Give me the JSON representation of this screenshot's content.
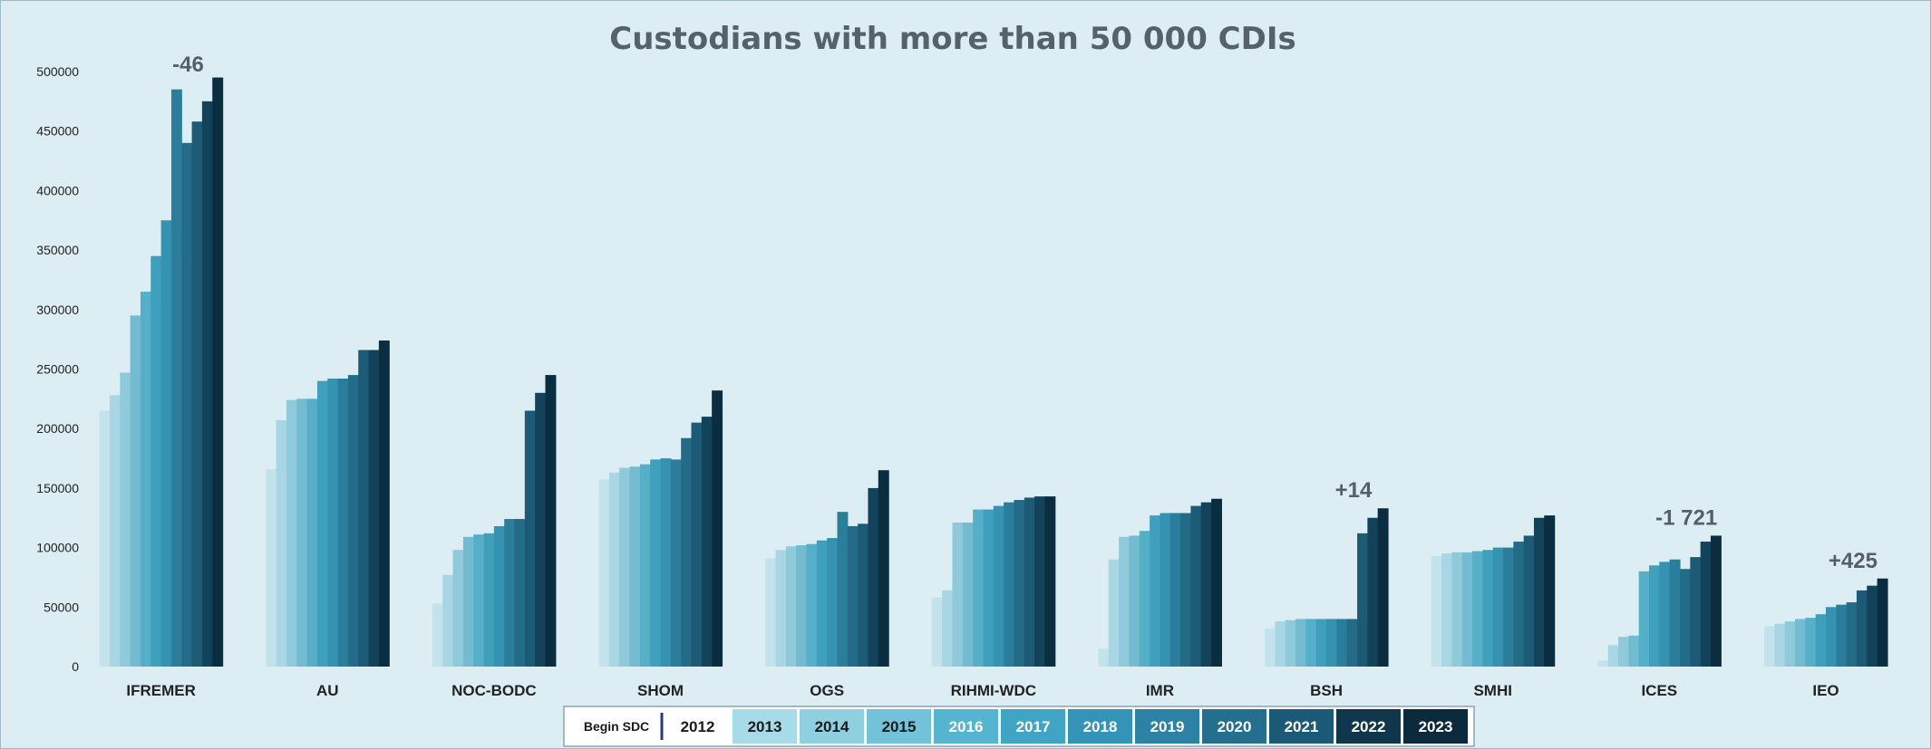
{
  "chart_data": {
    "type": "bar",
    "title": "Custodians with more than 50 000 CDIs",
    "ylim": [
      0,
      500000
    ],
    "yticks": [
      0,
      50000,
      100000,
      150000,
      200000,
      250000,
      300000,
      350000,
      400000,
      450000,
      500000
    ],
    "grid": false,
    "legend_position": "bottom",
    "categories": [
      "IFREMER",
      "AU",
      "NOC-BODC",
      "SHOM",
      "OGS",
      "RIHMI-WDC",
      "IMR",
      "BSH",
      "SMHI",
      "ICES",
      "IEO"
    ],
    "legend": {
      "title": "Begin SDC",
      "entries": [
        "2012",
        "2013",
        "2014",
        "2015",
        "2016",
        "2017",
        "2018",
        "2019",
        "2020",
        "2021",
        "2022",
        "2023"
      ]
    },
    "series": [
      {
        "values": [
          215000,
          166000,
          53000,
          157000,
          91000,
          58000,
          15000,
          32000,
          93000,
          5000,
          34000
        ]
      },
      {
        "values": [
          228000,
          207000,
          77000,
          163000,
          98000,
          64000,
          90000,
          38000,
          95000,
          18000,
          36000
        ]
      },
      {
        "values": [
          247000,
          224000,
          98000,
          167000,
          101000,
          121000,
          109000,
          39000,
          96000,
          25000,
          38000
        ]
      },
      {
        "values": [
          295000,
          225000,
          109000,
          168000,
          102000,
          121000,
          110000,
          40000,
          96000,
          26000,
          40000
        ]
      },
      {
        "values": [
          315000,
          225000,
          111000,
          170000,
          103000,
          132000,
          114000,
          40000,
          97000,
          80000,
          41000
        ]
      },
      {
        "values": [
          345000,
          240000,
          112000,
          174000,
          106000,
          132000,
          127000,
          40000,
          98000,
          85000,
          44000
        ]
      },
      {
        "values": [
          375000,
          242000,
          118000,
          175000,
          108000,
          135000,
          129000,
          40000,
          100000,
          88000,
          50000
        ]
      },
      {
        "values": [
          485000,
          242000,
          124000,
          174000,
          130000,
          138000,
          129000,
          40000,
          100000,
          90000,
          52000
        ]
      },
      {
        "values": [
          440000,
          245000,
          124000,
          192000,
          118000,
          140000,
          129000,
          40000,
          105000,
          82000,
          54000
        ]
      },
      {
        "values": [
          458000,
          266000,
          215000,
          205000,
          120000,
          142000,
          135000,
          112000,
          110000,
          92000,
          64000
        ]
      },
      {
        "values": [
          475000,
          266000,
          230000,
          210000,
          150000,
          143000,
          138000,
          125000,
          125000,
          105000,
          68000
        ]
      },
      {
        "values": [
          495000,
          274000,
          245000,
          232000,
          165000,
          143000,
          141000,
          133000,
          127000,
          110000,
          74000
        ]
      }
    ],
    "annotations": [
      {
        "category": "IFREMER",
        "text": "-46"
      },
      {
        "category": "BSH",
        "text": "+14"
      },
      {
        "category": "ICES",
        "text": "-1 721"
      },
      {
        "category": "IEO",
        "text": "+425"
      }
    ],
    "colors": [
      "#c2e2ec",
      "#a8d6e4",
      "#8ecada",
      "#72bbd0",
      "#55afc8",
      "#3fa0be",
      "#3592b0",
      "#2b7e9b",
      "#236b86",
      "#1c5a76",
      "#12435b",
      "#0b2d40"
    ],
    "legend_fills": [
      "#ffffff",
      "#a8dbe8",
      "#8ed0e0",
      "#72c3da",
      "#55b5d1",
      "#40a4c5",
      "#3494b8",
      "#2b82a4",
      "#236f8d",
      "#1b5a76",
      "#10364b",
      "#0b2a3c"
    ],
    "legend_text_colors": [
      "#1a1a1a",
      "#1a1a1a",
      "#1a1a1a",
      "#1a1a1a",
      "#ffffff",
      "#ffffff",
      "#ffffff",
      "#ffffff",
      "#ffffff",
      "#ffffff",
      "#ffffff",
      "#ffffff"
    ]
  }
}
